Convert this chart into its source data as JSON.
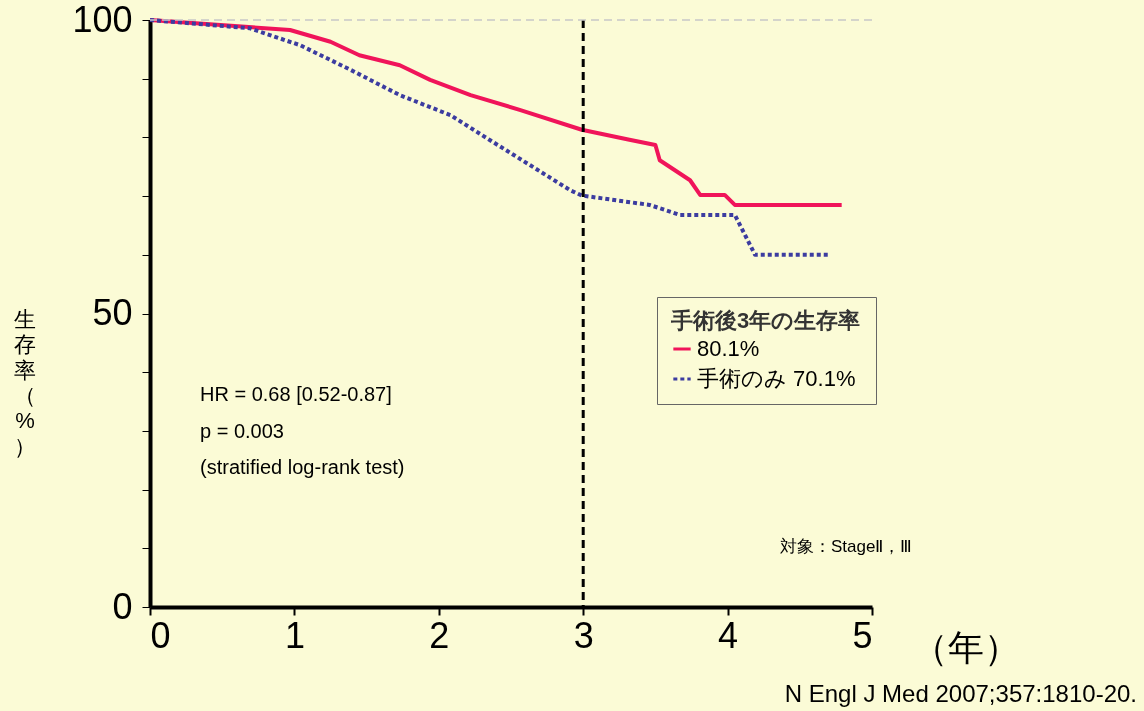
{
  "chart_data": {
    "type": "line",
    "xlabel": "（年）",
    "ylabel": "生存率（%）",
    "legend_title": "手術後3年の生存率",
    "legend": "right",
    "grid": false,
    "xlim": [
      0,
      5
    ],
    "xticks": [
      0,
      1,
      2,
      3,
      4,
      5
    ],
    "ylim": [
      0,
      100
    ],
    "yticks": [
      0,
      {
        "value": 10,
        "label": null
      },
      {
        "value": 20,
        "label": null
      },
      {
        "value": 30,
        "label": null
      },
      {
        "value": 40,
        "label": null
      },
      50,
      {
        "value": 60,
        "label": null
      },
      {
        "value": 70,
        "label": null
      },
      {
        "value": 80,
        "label": null
      },
      {
        "value": 90,
        "label": null
      },
      100
    ],
    "series": [
      {
        "name": "80.1%",
        "color": "#f0145a",
        "line_style": "solid",
        "x": [
          0,
          0.97,
          1.25,
          1.45,
          1.73,
          1.94,
          2.22,
          2.56,
          2.99,
          3.32,
          3.5,
          3.53,
          3.74,
          3.81,
          3.98,
          4.05,
          4.79
        ],
        "values": [
          100,
          98.3,
          96.3,
          94,
          92.3,
          89.8,
          87.2,
          84.7,
          81.3,
          79.6,
          78.7,
          76.1,
          72.7,
          70.2,
          70.2,
          68.5,
          68.5
        ]
      },
      {
        "name": "手術のみ  70.1%",
        "color": "#3c3ca0",
        "line_style": "dotted",
        "x": [
          0,
          0.69,
          1.04,
          1.39,
          1.73,
          2.08,
          2.35,
          2.63,
          2.91,
          2.99,
          3.46,
          3.67,
          4.05,
          4.12,
          4.19,
          4.71
        ],
        "values": [
          100,
          98.6,
          95.7,
          91.5,
          87.2,
          83.8,
          79.6,
          75.3,
          71,
          70.1,
          68.5,
          66.8,
          66.8,
          63.4,
          60,
          60
        ]
      }
    ],
    "ref_lines": [
      {
        "axis": "x",
        "value": 3,
        "color": "#000000",
        "line_style": "dashed"
      },
      {
        "axis": "y",
        "value": 100,
        "color": "#c8c8c8",
        "line_style": "dashed"
      }
    ],
    "annotations": [
      "HR = 0.68 [0.52-0.87]",
      "p = 0.003",
      "(stratified log-rank test)",
      "対象：StageⅡ，Ⅲ",
      "N Engl J Med 2007;357:1810-20."
    ]
  }
}
